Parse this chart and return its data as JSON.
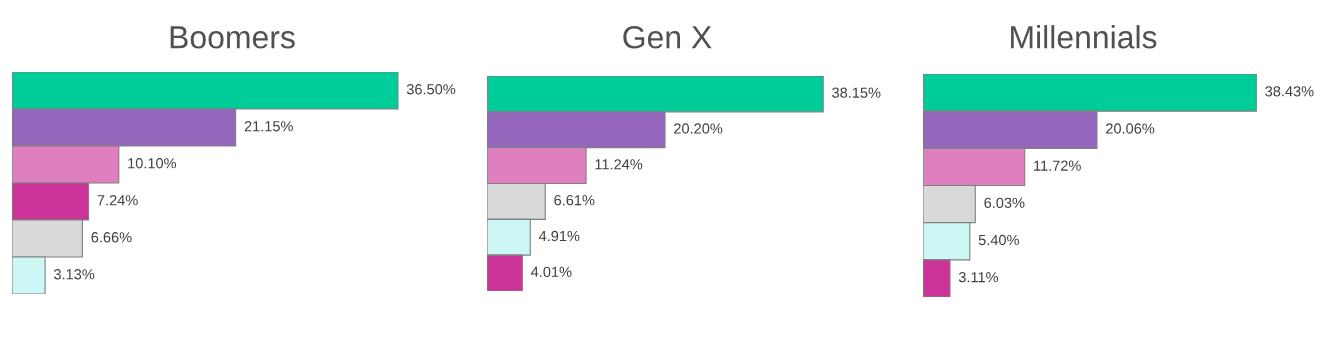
{
  "chart_data": [
    {
      "type": "bar",
      "orientation": "horizontal",
      "title": "Boomers",
      "categories": [
        null,
        null,
        null,
        null,
        null,
        null
      ],
      "values": [
        36.5,
        21.15,
        10.1,
        7.24,
        6.66,
        3.13
      ],
      "colors": [
        "#00cc99",
        "#9467bd",
        "#e07fbf",
        "#cc3399",
        "#d9d9d9",
        "#ccf7f4"
      ],
      "value_labels": [
        "36.50%",
        "21.15%",
        "10.10%",
        "7.24%",
        "6.66%",
        "3.13%"
      ],
      "tick_labels": false
    },
    {
      "type": "bar",
      "orientation": "horizontal",
      "title": "Gen X",
      "categories": [
        null,
        null,
        null,
        null,
        null,
        null
      ],
      "values": [
        38.15,
        20.2,
        11.24,
        6.61,
        4.91,
        4.01
      ],
      "colors": [
        "#00cc99",
        "#9467bd",
        "#e07fbf",
        "#d9d9d9",
        "#ccf7f4",
        "#cc3399"
      ],
      "value_labels": [
        "38.15%",
        "20.20%",
        "11.24%",
        "6.61%",
        "4.91%",
        "4.01%"
      ],
      "tick_labels": false
    },
    {
      "type": "bar",
      "orientation": "horizontal",
      "title": "Millennials",
      "categories": [
        null,
        null,
        null,
        null,
        null,
        null
      ],
      "values": [
        38.43,
        20.06,
        11.72,
        6.03,
        5.4,
        3.11
      ],
      "colors": [
        "#00cc99",
        "#9467bd",
        "#e07fbf",
        "#d9d9d9",
        "#ccf7f4",
        "#cc3399"
      ],
      "value_labels": [
        "38.43%",
        "20.06%",
        "11.72%",
        "6.03%",
        "5.40%",
        "3.11%"
      ],
      "tick_labels": false
    }
  ]
}
